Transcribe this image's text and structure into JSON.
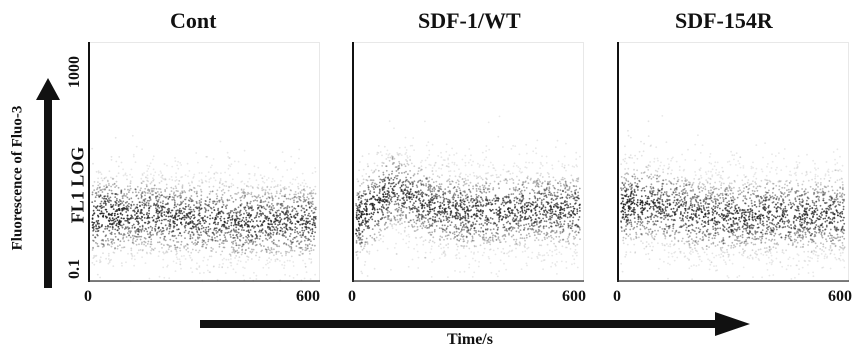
{
  "chart_data": [
    {
      "type": "scatter",
      "title": "Cont",
      "xlabel": "Time/s",
      "ylabel": "Fluorescence of Fluo-3",
      "y_scale_label": "FL1 LOG",
      "y_scale": "log",
      "xlim": [
        0,
        600
      ],
      "ylim": [
        0.1,
        1000
      ],
      "xticks": [
        "0",
        "600"
      ],
      "yticks": [
        "0.1",
        "1000"
      ],
      "density_profile": {
        "time": [
          0,
          50,
          100,
          200,
          300,
          400,
          500,
          600
        ],
        "median_fluorescence": [
          1.2,
          1.3,
          1.3,
          1.2,
          1.1,
          1.0,
          1.0,
          1.0
        ]
      }
    },
    {
      "type": "scatter",
      "title": "SDF-1/WT",
      "xlabel": "Time/s",
      "y_scale": "log",
      "xlim": [
        0,
        600
      ],
      "ylim": [
        0.1,
        1000
      ],
      "xticks": [
        "0",
        "600"
      ],
      "density_profile": {
        "time": [
          0,
          50,
          100,
          150,
          200,
          300,
          400,
          500,
          600
        ],
        "median_fluorescence": [
          1.0,
          1.8,
          3.5,
          2.5,
          1.7,
          1.4,
          1.5,
          1.6,
          1.6
        ]
      }
    },
    {
      "type": "scatter",
      "title": "SDF-154R",
      "xlabel": "Time/s",
      "y_scale": "log",
      "xlim": [
        0,
        600
      ],
      "ylim": [
        0.1,
        1000
      ],
      "xticks": [
        "0",
        "600"
      ],
      "density_profile": {
        "time": [
          0,
          50,
          100,
          200,
          300,
          400,
          500,
          600
        ],
        "median_fluorescence": [
          1.8,
          2.0,
          1.9,
          1.3,
          1.2,
          1.3,
          1.3,
          1.3
        ]
      }
    }
  ],
  "colors": {
    "ink": "#111111",
    "dot": "#222222"
  }
}
